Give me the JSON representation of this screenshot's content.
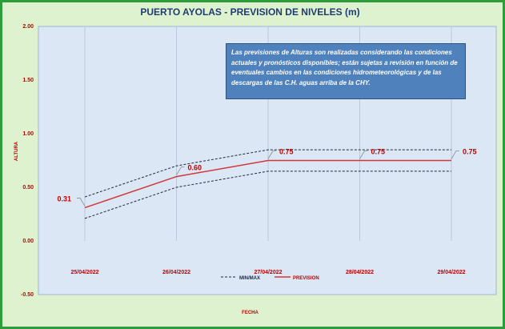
{
  "title": "PUERTO AYOLAS - PREVISION DE NIVELES (m)",
  "note": "Las previsiones de Alturas son realizadas considerando las condiciones actuales y pronósticos disponibles; están sujetas a revisión en función de eventuales cambios en las condiciones hidrometeorológicas y de las descargas de las C.H. aguas arriba de la CHY.",
  "colors": {
    "frame": "#2e9c3a",
    "background": "#dff2cf",
    "plot": "#dbe7f5",
    "prevision": "#d0383a",
    "minmax": "#1f2a44",
    "axis_text": "#c00000",
    "note_box": "#4f81bd"
  },
  "chart_data": {
    "type": "line",
    "title": "PUERTO AYOLAS - PREVISION DE NIVELES (m)",
    "xlabel": "FECHA",
    "ylabel": "ALTURA",
    "categories": [
      "25/04/2022",
      "26/04/2022",
      "27/04/2022",
      "28/04/2022",
      "29/04/2022"
    ],
    "ylim": [
      -0.5,
      2.0
    ],
    "yticks": [
      "2.00",
      "1.50",
      "1.00",
      "0.50",
      "0.00",
      "-0.50"
    ],
    "grid": "vertical",
    "legend_position": "bottom",
    "series": [
      {
        "name": "PREVISION",
        "values": [
          0.31,
          0.6,
          0.75,
          0.75,
          0.75
        ],
        "style": "solid",
        "color": "#d0383a"
      },
      {
        "name": "MIN/MAX",
        "upper": [
          0.41,
          0.7,
          0.85,
          0.85,
          0.85
        ],
        "lower": [
          0.21,
          0.5,
          0.65,
          0.65,
          0.65
        ],
        "style": "dashed",
        "color": "#1f2a44"
      }
    ],
    "data_labels": [
      "0.31",
      "0.60",
      "0.75",
      "0.75",
      "0.75"
    ]
  }
}
